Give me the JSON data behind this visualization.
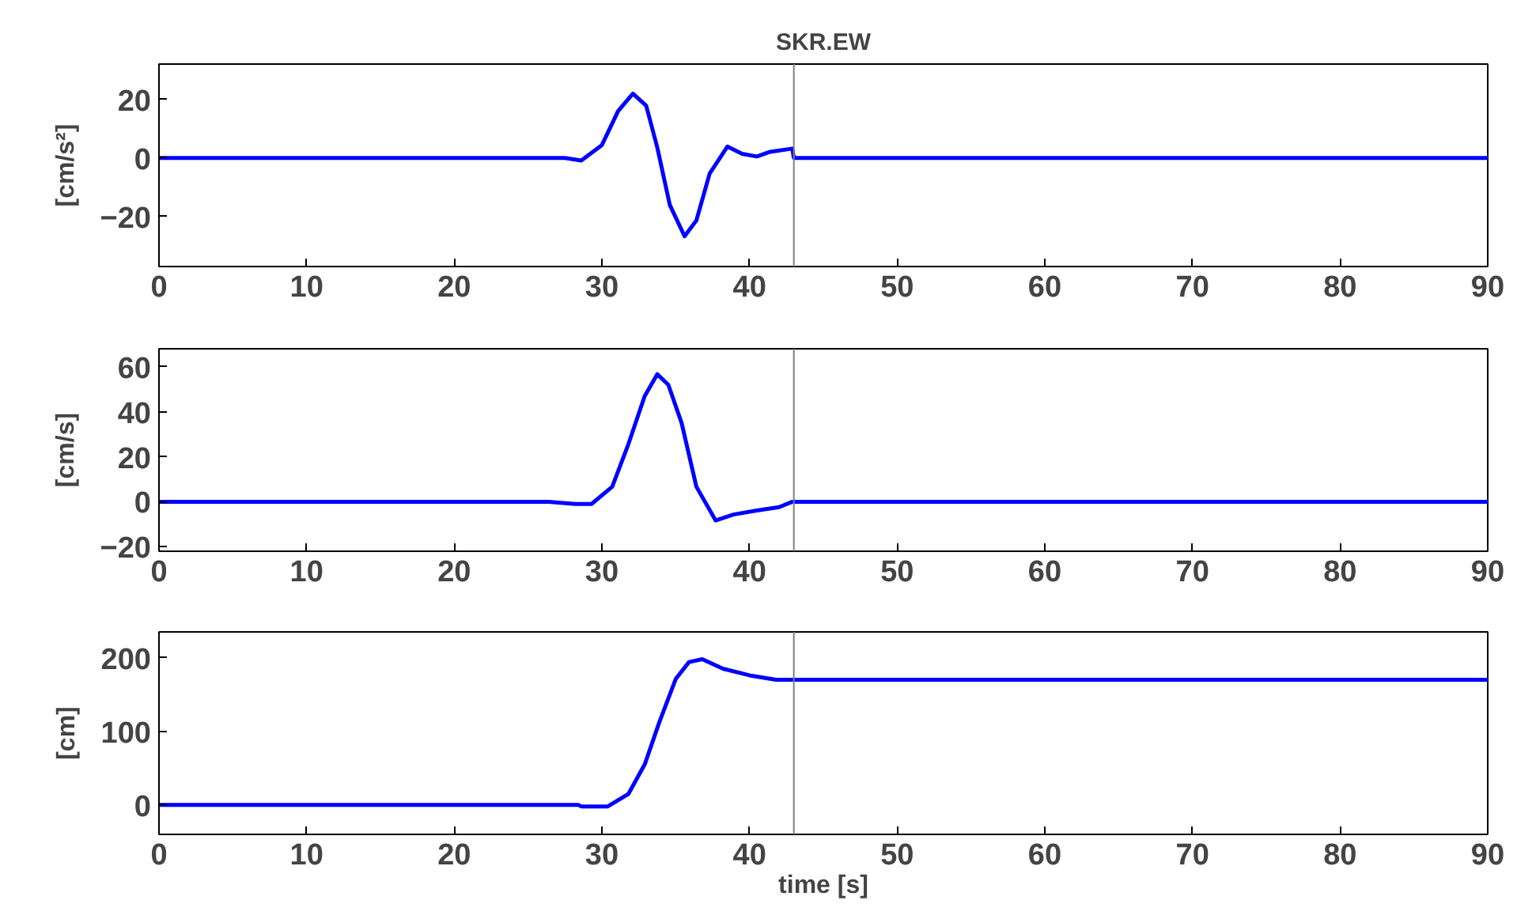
{
  "chart_data": [
    {
      "type": "line",
      "title": "SKR.EW",
      "ylabel": "[cm/s²]",
      "xlim": [
        0,
        90
      ],
      "xticks": [
        0,
        10,
        20,
        30,
        40,
        50,
        60,
        70,
        80,
        90
      ],
      "ylim": [
        -37,
        32
      ],
      "yticks": [
        -20,
        0,
        20
      ],
      "grid": false,
      "x": [
        0,
        27.5,
        28.6,
        30.0,
        31.1,
        32.1,
        33.0,
        33.75,
        34.6,
        35.6,
        36.4,
        37.3,
        38.5,
        39.5,
        40.5,
        41.4,
        42.9,
        43,
        90
      ],
      "series": [
        {
          "color": "#0000ff",
          "values": [
            0,
            0,
            -0.9,
            4.4,
            16,
            21.9,
            17.8,
            3.6,
            -16,
            -26.7,
            -21.3,
            -5.3,
            3.9,
            1.4,
            0.5,
            2.1,
            3.2,
            0,
            0
          ]
        }
      ],
      "ref_lines": [
        {
          "axis": "x",
          "value": 43,
          "color": "#808080"
        }
      ]
    },
    {
      "type": "line",
      "ylabel": "[cm/s]",
      "xlim": [
        0,
        90
      ],
      "xticks": [
        0,
        10,
        20,
        30,
        40,
        50,
        60,
        70,
        80,
        90
      ],
      "ylim": [
        -22,
        68
      ],
      "yticks": [
        -20,
        0,
        20,
        40,
        60
      ],
      "grid": false,
      "x": [
        0,
        26.4,
        28.2,
        29.3,
        30.7,
        31.8,
        32.9,
        33.75,
        34.5,
        35.4,
        36.4,
        37.7,
        38.9,
        40.4,
        42.0,
        42.9,
        90
      ],
      "series": [
        {
          "color": "#0000ff",
          "values": [
            0,
            0,
            -1,
            -1,
            6.7,
            25.7,
            47,
            56.7,
            52,
            35,
            6.7,
            -8.3,
            -5.7,
            -4,
            -2.4,
            0,
            0
          ]
        }
      ],
      "ref_lines": [
        {
          "axis": "x",
          "value": 43,
          "color": "#808080"
        }
      ]
    },
    {
      "type": "line",
      "xlabel": "time [s]",
      "ylabel": "[cm]",
      "xlim": [
        0,
        90
      ],
      "xticks": [
        0,
        10,
        20,
        30,
        40,
        50,
        60,
        70,
        80,
        90
      ],
      "ylim": [
        -40,
        235
      ],
      "yticks": [
        0,
        100,
        200
      ],
      "grid": false,
      "x": [
        0,
        28.4,
        28.6,
        30.4,
        31.8,
        32.9,
        33.9,
        35.0,
        35.9,
        36.8,
        38.2,
        40.0,
        41.8,
        90
      ],
      "series": [
        {
          "color": "#0000ff",
          "values": [
            0,
            0,
            -2,
            -2,
            15,
            55,
            113,
            171,
            194,
            198,
            185,
            176,
            170,
            170
          ]
        }
      ],
      "ref_lines": [
        {
          "axis": "x",
          "value": 43,
          "color": "#808080"
        }
      ]
    }
  ]
}
